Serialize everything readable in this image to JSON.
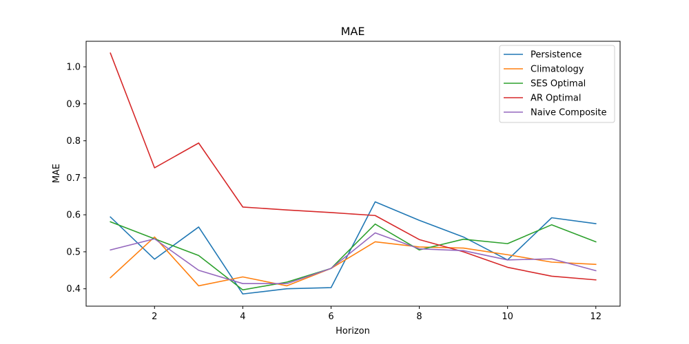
{
  "chart_data": {
    "type": "line",
    "title": "MAE",
    "xlabel": "Horizon",
    "ylabel": "MAE",
    "x": [
      1,
      2,
      3,
      4,
      5,
      6,
      7,
      8,
      9,
      10,
      11,
      12
    ],
    "xlim": [
      0.45,
      12.55
    ],
    "ylim": [
      0.353,
      1.069
    ],
    "xticks": [
      2,
      4,
      6,
      8,
      10,
      12
    ],
    "yticks": [
      0.4,
      0.5,
      0.6,
      0.7,
      0.8,
      0.9,
      1.0
    ],
    "ytick_labels": [
      "0.4",
      "0.5",
      "0.6",
      "0.7",
      "0.8",
      "0.9",
      "1.0"
    ],
    "grid": false,
    "legend_position": "top-right",
    "series": [
      {
        "name": "Persistence",
        "color": "#1f77b4",
        "values": [
          0.594,
          0.48,
          0.567,
          0.386,
          0.4,
          0.403,
          0.635,
          0.585,
          0.54,
          0.478,
          0.592,
          0.576
        ]
      },
      {
        "name": "Climatology",
        "color": "#ff7f0e",
        "values": [
          0.43,
          0.54,
          0.408,
          0.432,
          0.408,
          0.455,
          0.527,
          0.513,
          0.51,
          0.492,
          0.472,
          0.466
        ]
      },
      {
        "name": "SES Optimal",
        "color": "#2ca02c",
        "values": [
          0.581,
          0.535,
          0.49,
          0.397,
          0.418,
          0.455,
          0.575,
          0.505,
          0.534,
          0.522,
          0.573,
          0.527
        ]
      },
      {
        "name": "AR Optimal",
        "color": "#d62728",
        "values": [
          1.037,
          0.727,
          0.794,
          0.621,
          0.613,
          0.606,
          0.598,
          0.533,
          0.5,
          0.458,
          0.434,
          0.424
        ]
      },
      {
        "name": "Naive Composite",
        "color": "#9467bd",
        "values": [
          0.505,
          0.535,
          0.45,
          0.414,
          0.414,
          0.455,
          0.551,
          0.508,
          0.503,
          0.478,
          0.481,
          0.449
        ]
      }
    ]
  }
}
